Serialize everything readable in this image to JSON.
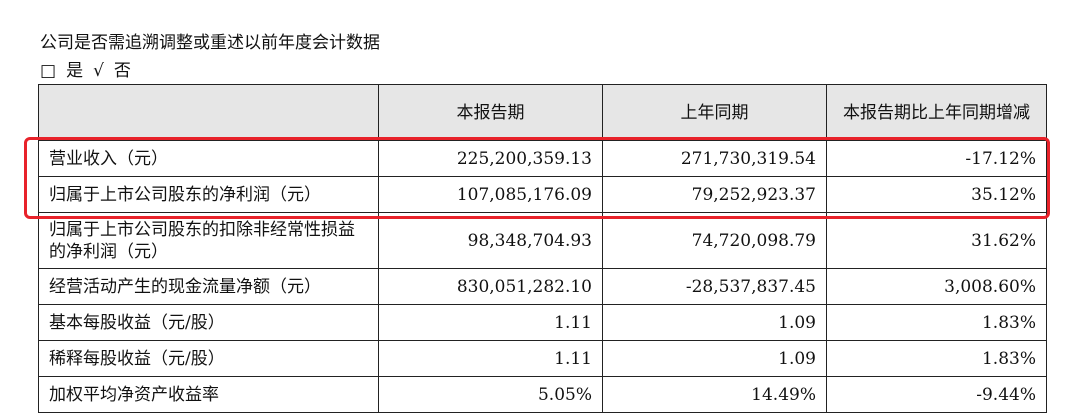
{
  "question": "公司是否需追溯调整或重述以前年度会计数据",
  "options": [
    {
      "mark": "□",
      "label": "是"
    },
    {
      "mark": "√",
      "label": "否"
    }
  ],
  "table": {
    "columns": [
      "本报告期",
      "上年同期",
      "本报告期比上年同期增减"
    ],
    "rows": [
      [
        "营业收入（元）",
        "225,200,359.13",
        "271,730,319.54",
        "-17.12%"
      ],
      [
        "归属于上市公司股东的净利润（元）",
        "107,085,176.09",
        "79,252,923.37",
        "35.12%"
      ],
      [
        "归属于上市公司股东的扣除非经常性损益的净利润（元）",
        "98,348,704.93",
        "74,720,098.79",
        "31.62%"
      ],
      [
        "经营活动产生的现金流量净额（元）",
        "830,051,282.10",
        "-28,537,837.45",
        "3,008.60%"
      ],
      [
        "基本每股收益（元/股）",
        "1.11",
        "1.09",
        "1.83%"
      ],
      [
        "稀释每股收益（元/股）",
        "1.11",
        "1.09",
        "1.83%"
      ],
      [
        "加权平均净资产收益率",
        "5.05%",
        "14.49%",
        "-9.44%"
      ]
    ]
  }
}
